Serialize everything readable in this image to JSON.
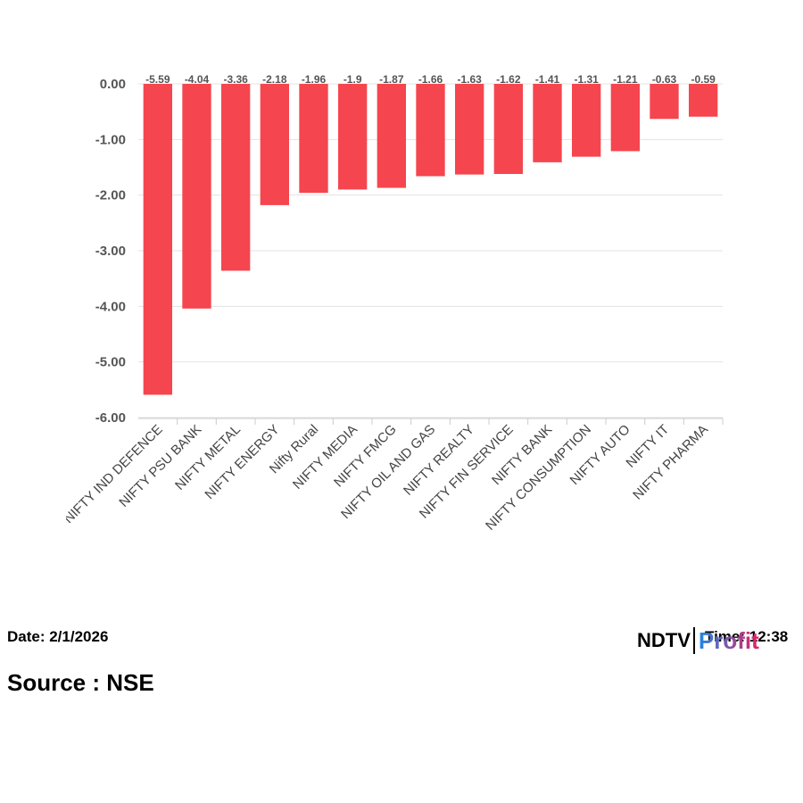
{
  "chart_data": {
    "type": "bar",
    "categories": [
      "NIFTY IND DEFENCE",
      "NIFTY PSU BANK",
      "NIFTY METAL",
      "NIFTY ENERGY",
      "Nifty Rural",
      "NIFTY MEDIA",
      "NIFTY FMCG",
      "NIFTY OIL AND GAS",
      "NIFTY REALTY",
      "NIFTY FIN SERVICE",
      "NIFTY BANK",
      "NIFTY CONSUMPTION",
      "NIFTY AUTO",
      "NIFTY IT",
      "NIFTY PHARMA"
    ],
    "values": [
      -5.59,
      -4.04,
      -3.36,
      -2.18,
      -1.96,
      -1.9,
      -1.87,
      -1.66,
      -1.63,
      -1.62,
      -1.41,
      -1.31,
      -1.21,
      -0.63,
      -0.59
    ],
    "data_labels": [
      "-5.59",
      "-4.04",
      "-3.36",
      "-2.18",
      "-1.96",
      "-1.9",
      "-1.87",
      "-1.66",
      "-1.63",
      "-1.62",
      "-1.41",
      "-1.31",
      "-1.21",
      "-0.63",
      "-0.59"
    ],
    "yticks": [
      0,
      -1,
      -2,
      -3,
      -4,
      -5,
      -6
    ],
    "ytick_labels": [
      "0.00",
      "-1.00",
      "-2.00",
      "-3.00",
      "-4.00",
      "-5.00",
      "-6.00"
    ],
    "ylim": [
      -6,
      0
    ],
    "grid": true,
    "bar_color": "#f5454e",
    "title": "",
    "xlabel": "",
    "ylabel": ""
  },
  "footer": {
    "date": "Date: 2/1/2026",
    "source": "Source : NSE",
    "time": "Time: 12:38"
  },
  "logo": {
    "ndtv": "NDTV",
    "profit": "Profit",
    "profit_color_start": "#1e88e5",
    "profit_color_end": "#e91e63"
  }
}
